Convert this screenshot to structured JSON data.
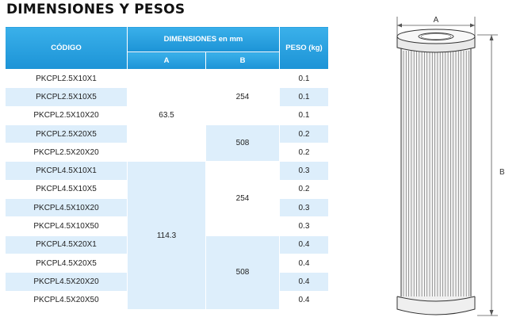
{
  "title": "DIMENSIONES Y PESOS",
  "headers": {
    "code": "CÓDIGO",
    "dimensions": "DIMENSIONES  en  mm",
    "a": "A",
    "b": "B",
    "weight": "PESO (kg)"
  },
  "rows": [
    {
      "code": "PKCPL2.5X10X1",
      "weight": "0.1"
    },
    {
      "code": "PKCPL2.5X10X5",
      "weight": "0.1"
    },
    {
      "code": "PKCPL2.5X10X20",
      "weight": "0.1"
    },
    {
      "code": "PKCPL2.5X20X5",
      "weight": "0.2"
    },
    {
      "code": "PKCPL2.5X20X20",
      "weight": "0.2"
    },
    {
      "code": "PKCPL4.5X10X1",
      "weight": "0.3"
    },
    {
      "code": "PKCPL4.5X10X5",
      "weight": "0.2"
    },
    {
      "code": "PKCPL4.5X10X20",
      "weight": "0.3"
    },
    {
      "code": "PKCPL4.5X10X50",
      "weight": "0.3"
    },
    {
      "code": "PKCPL4.5X20X1",
      "weight": "0.4"
    },
    {
      "code": "PKCPL4.5X20X5",
      "weight": "0.4"
    },
    {
      "code": "PKCPL4.5X20X20",
      "weight": "0.4"
    },
    {
      "code": "PKCPL4.5X20X50",
      "weight": "0.4"
    }
  ],
  "dim_a_groups": [
    "63.5",
    "114.3"
  ],
  "dim_b_groups": [
    "254",
    "508",
    "254",
    "508"
  ],
  "figure": {
    "label_a": "A",
    "label_b": "B"
  },
  "colors": {
    "header": "#1c93d6",
    "row_shade": "#ddeefb"
  }
}
